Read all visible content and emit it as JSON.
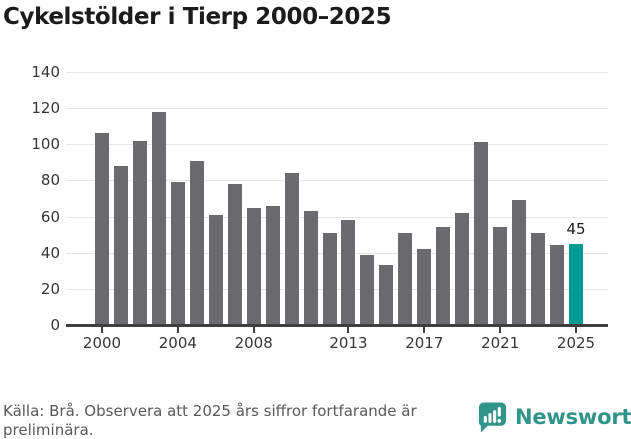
{
  "title": "Cykelstölder i Tierp 2000–2025",
  "chart_data": {
    "type": "bar",
    "title": "Cykelstölder i Tierp 2000–2025",
    "x": [
      2000,
      2001,
      2002,
      2003,
      2004,
      2005,
      2006,
      2007,
      2008,
      2009,
      2010,
      2011,
      2012,
      2013,
      2014,
      2015,
      2016,
      2017,
      2018,
      2019,
      2020,
      2021,
      2022,
      2023,
      2024,
      2025
    ],
    "values": [
      106,
      88,
      102,
      118,
      79,
      91,
      61,
      78,
      65,
      66,
      84,
      63,
      51,
      58,
      39,
      33,
      51,
      42,
      54,
      62,
      101,
      54,
      69,
      51,
      44,
      45
    ],
    "xlabel": "",
    "ylabel": "",
    "ylim": [
      0,
      140
    ],
    "yticks": [
      0,
      20,
      40,
      60,
      80,
      100,
      120,
      140
    ],
    "xtick_labels": [
      2000,
      2004,
      2008,
      2013,
      2017,
      2021,
      2025
    ],
    "grid": true,
    "legend_position": "none",
    "bar_color": "#6a6a6f",
    "highlight_index": 25,
    "highlight_color": "#009b94",
    "highlight_value_label": "45",
    "annotations": [
      {
        "text": "45",
        "x": 2025,
        "y": 45
      }
    ]
  },
  "footer": {
    "source_text": "Källa: Brå. Observera att 2025 års siffror fortfarande är preliminära.",
    "brand": {
      "name": "Newsworthy",
      "color": "#30948a",
      "icon": "bar-chart-speech-bubble-icon"
    }
  }
}
